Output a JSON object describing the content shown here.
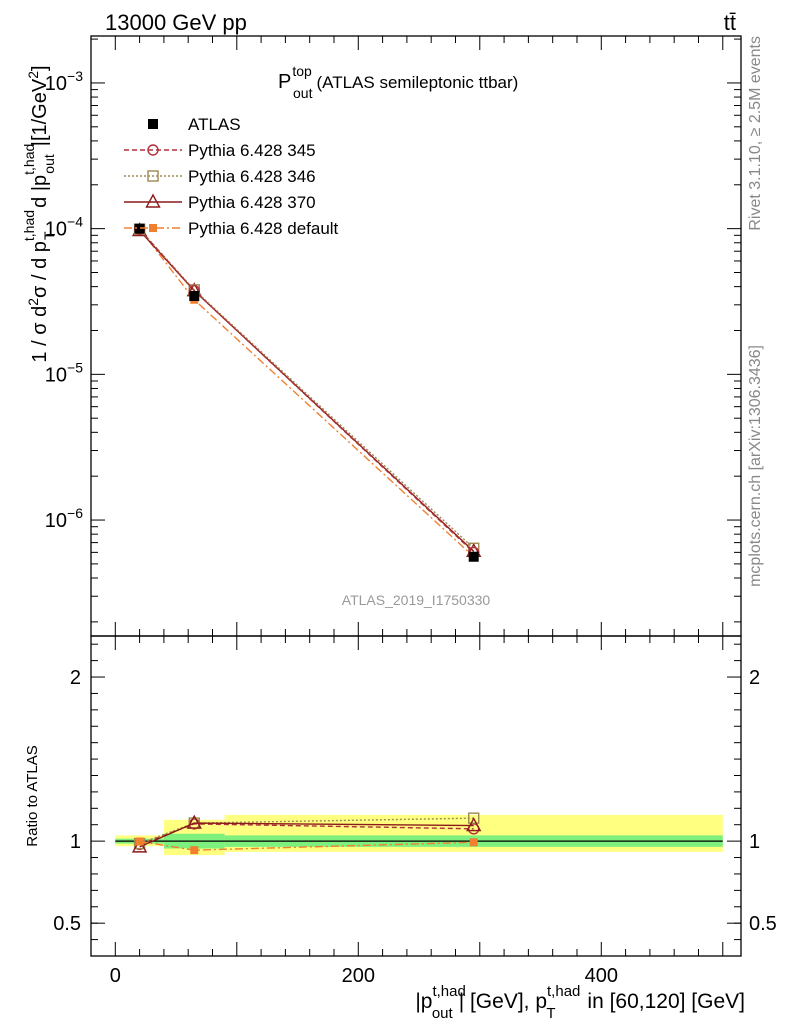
{
  "header": {
    "left_label": "13000 GeV pp",
    "right_label": "tt̄"
  },
  "side_labels": {
    "rivet": "Rivet 3.1.10, ≥ 2.5M events",
    "mcplots": "mcplots.cern.ch [arXiv:1306.3436]"
  },
  "plot_title": {
    "main": "P",
    "sup": "top",
    "sub": "out",
    "rest": "(ATLAS semileptonic ttbar)"
  },
  "watermark": "ATLAS_2019_I1750330",
  "colors": {
    "data": "#000000",
    "p345": "#b0303c",
    "p346": "#9c8a50",
    "p370": "#8b1a1a",
    "pdef": "#f08030",
    "band_inner": "#7ef07e",
    "band_outer": "#ffff80"
  },
  "chart_data": [
    {
      "type": "line",
      "name": "main",
      "yscale": "log",
      "xlim": [
        -20,
        515
      ],
      "ylim": [
        1.6e-07,
        0.0021
      ],
      "ylabel": "1 / σ d²σ / d p_T^{t,had} d |p_out^{t,had}| [1/GeV²]",
      "y_ticklabels": [
        "10^-3",
        "10^-4",
        "10^-5",
        "10^-6"
      ],
      "legend": [
        "ATLAS",
        "Pythia 6.428 345",
        "Pythia 6.428 346",
        "Pythia 6.428 370",
        "Pythia 6.428 default"
      ],
      "legend_position": "top-left",
      "series": [
        {
          "name": "ATLAS",
          "x": [
            20,
            65,
            295
          ],
          "y": [
            0.0001,
            3.45e-05,
            5.6e-07
          ]
        },
        {
          "name": "Pythia 6.428 345",
          "x": [
            20,
            65,
            295
          ],
          "y": [
            9.9e-05,
            3.75e-05,
            6e-07
          ]
        },
        {
          "name": "Pythia 6.428 346",
          "x": [
            20,
            65,
            295
          ],
          "y": [
            9.9e-05,
            3.8e-05,
            6.4e-07
          ]
        },
        {
          "name": "Pythia 6.428 370",
          "x": [
            20,
            65,
            295
          ],
          "y": [
            9.7e-05,
            3.75e-05,
            6.1e-07
          ]
        },
        {
          "name": "Pythia 6.428 default",
          "x": [
            20,
            65,
            295
          ],
          "y": [
            0.0001,
            3.25e-05,
            5.6e-07
          ]
        }
      ]
    },
    {
      "type": "line",
      "name": "ratio",
      "xlim": [
        -20,
        515
      ],
      "ylim": [
        0.3,
        2.25
      ],
      "ylabel": "Ratio to ATLAS",
      "y_ticks": [
        0.5,
        1,
        2
      ],
      "y_ticklabels": [
        "0.5",
        "1",
        "2"
      ],
      "x_ticks": [
        0,
        200,
        400
      ],
      "x_ticklabels": [
        "0",
        "200",
        "400"
      ],
      "xlabel": "|p_out^{t,had}| [GeV], p_T^{t,had} in [60,120] [GeV]",
      "bands": {
        "bins": [
          [
            0,
            40
          ],
          [
            40,
            90
          ],
          [
            90,
            500
          ]
        ],
        "inner": [
          [
            0.985,
            1.015
          ],
          [
            0.955,
            1.045
          ],
          [
            0.965,
            1.035
          ]
        ],
        "outer": [
          [
            0.97,
            1.035
          ],
          [
            0.915,
            1.13
          ],
          [
            0.935,
            1.16
          ]
        ]
      },
      "series": [
        {
          "name": "Pythia 6.428 345",
          "x": [
            20,
            65,
            295
          ],
          "y": [
            0.98,
            1.105,
            1.075
          ]
        },
        {
          "name": "Pythia 6.428 346",
          "x": [
            20,
            65,
            295
          ],
          "y": [
            0.985,
            1.11,
            1.14
          ]
        },
        {
          "name": "Pythia 6.428 370",
          "x": [
            20,
            65,
            295
          ],
          "y": [
            0.965,
            1.11,
            1.095
          ]
        },
        {
          "name": "Pythia 6.428 default",
          "x": [
            20,
            65,
            295
          ],
          "y": [
            0.998,
            0.945,
            0.993
          ]
        }
      ]
    }
  ]
}
